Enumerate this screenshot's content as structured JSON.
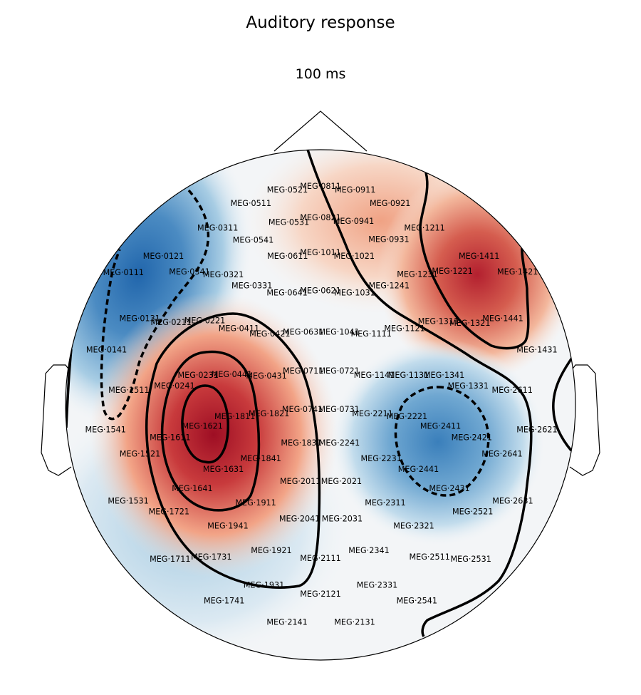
{
  "chart_data": {
    "type": "heatmap",
    "title": "Auditory response",
    "subtitle": "100 ms",
    "colormap": "RdBu_r",
    "colors": {
      "positive": "#b2182b",
      "negative": "#2166ac",
      "neutral": "#f7f7f7"
    },
    "sensors": [
      {
        "name": "MEG·0521",
        "x": -0.13,
        "y": 0.843
      },
      {
        "name": "MEG·0811",
        "x": 0.0,
        "y": 0.857
      },
      {
        "name": "MEG·0911",
        "x": 0.136,
        "y": 0.843
      },
      {
        "name": "MEG·0511",
        "x": -0.273,
        "y": 0.791
      },
      {
        "name": "MEG·0921",
        "x": 0.273,
        "y": 0.791
      },
      {
        "name": "MEG·0531",
        "x": -0.124,
        "y": 0.717
      },
      {
        "name": "MEG·0821",
        "x": 0.0,
        "y": 0.734
      },
      {
        "name": "MEG·0941",
        "x": 0.13,
        "y": 0.72
      },
      {
        "name": "MEG·0311",
        "x": -0.403,
        "y": 0.694
      },
      {
        "name": "MEG·1211",
        "x": 0.408,
        "y": 0.694
      },
      {
        "name": "MEG·0541",
        "x": -0.264,
        "y": 0.646
      },
      {
        "name": "MEG·0931",
        "x": 0.268,
        "y": 0.649
      },
      {
        "name": "MEG·0121",
        "x": -0.616,
        "y": 0.584
      },
      {
        "name": "MEG·1411",
        "x": 0.622,
        "y": 0.584
      },
      {
        "name": "MEG·0611",
        "x": -0.129,
        "y": 0.584
      },
      {
        "name": "MEG·1011",
        "x": 0.0,
        "y": 0.598
      },
      {
        "name": "MEG·1021",
        "x": 0.132,
        "y": 0.584
      },
      {
        "name": "MEG·0111",
        "x": -0.773,
        "y": 0.52
      },
      {
        "name": "MEG·0341",
        "x": -0.514,
        "y": 0.523
      },
      {
        "name": "MEG·0321",
        "x": -0.381,
        "y": 0.511
      },
      {
        "name": "MEG·1221",
        "x": 0.517,
        "y": 0.525
      },
      {
        "name": "MEG·1231",
        "x": 0.38,
        "y": 0.513
      },
      {
        "name": "MEG·1421",
        "x": 0.773,
        "y": 0.523
      },
      {
        "name": "MEG·0331",
        "x": -0.269,
        "y": 0.468
      },
      {
        "name": "MEG·1241",
        "x": 0.269,
        "y": 0.468
      },
      {
        "name": "MEG·0641",
        "x": -0.131,
        "y": 0.44
      },
      {
        "name": "MEG·0621",
        "x": 0.0,
        "y": 0.448
      },
      {
        "name": "MEG·1031",
        "x": 0.134,
        "y": 0.44
      },
      {
        "name": "MEG·0131",
        "x": -0.709,
        "y": 0.34
      },
      {
        "name": "MEG·0211",
        "x": -0.586,
        "y": 0.324
      },
      {
        "name": "MEG·0221",
        "x": -0.454,
        "y": 0.331
      },
      {
        "name": "MEG·1311",
        "x": 0.462,
        "y": 0.328
      },
      {
        "name": "MEG·1321",
        "x": 0.586,
        "y": 0.321
      },
      {
        "name": "MEG·1441",
        "x": 0.715,
        "y": 0.34
      },
      {
        "name": "MEG·0411",
        "x": -0.32,
        "y": 0.3
      },
      {
        "name": "MEG·0421",
        "x": -0.199,
        "y": 0.28
      },
      {
        "name": "MEG·0631",
        "x": -0.068,
        "y": 0.286
      },
      {
        "name": "MEG·1041",
        "x": 0.073,
        "y": 0.286
      },
      {
        "name": "MEG·1111",
        "x": 0.199,
        "y": 0.28
      },
      {
        "name": "MEG·1121",
        "x": 0.33,
        "y": 0.3
      },
      {
        "name": "MEG·0141",
        "x": -0.839,
        "y": 0.216
      },
      {
        "name": "MEG·1431",
        "x": 0.849,
        "y": 0.216
      },
      {
        "name": "MEG·0711",
        "x": -0.068,
        "y": 0.134
      },
      {
        "name": "MEG·0721",
        "x": 0.073,
        "y": 0.134
      },
      {
        "name": "MEG·0231",
        "x": -0.48,
        "y": 0.117
      },
      {
        "name": "MEG·0441",
        "x": -0.348,
        "y": 0.12
      },
      {
        "name": "MEG·0431",
        "x": -0.212,
        "y": 0.115
      },
      {
        "name": "MEG·1141",
        "x": 0.211,
        "y": 0.117
      },
      {
        "name": "MEG·1131",
        "x": 0.345,
        "y": 0.117
      },
      {
        "name": "MEG·1341",
        "x": 0.485,
        "y": 0.117
      },
      {
        "name": "MEG·0241",
        "x": -0.573,
        "y": 0.076
      },
      {
        "name": "MEG·1511",
        "x": -0.752,
        "y": 0.059
      },
      {
        "name": "MEG·1331",
        "x": 0.579,
        "y": 0.076
      },
      {
        "name": "MEG·2611",
        "x": 0.752,
        "y": 0.059
      },
      {
        "name": "MEG·1811",
        "x": -0.336,
        "y": -0.045
      },
      {
        "name": "MEG·1821",
        "x": -0.202,
        "y": -0.034
      },
      {
        "name": "MEG·0741",
        "x": -0.071,
        "y": -0.017
      },
      {
        "name": "MEG·0731",
        "x": 0.073,
        "y": -0.017
      },
      {
        "name": "MEG·2211",
        "x": 0.204,
        "y": -0.034
      },
      {
        "name": "MEG·2221",
        "x": 0.339,
        "y": -0.045
      },
      {
        "name": "MEG·1621",
        "x": -0.463,
        "y": -0.082
      },
      {
        "name": "MEG·2411",
        "x": 0.471,
        "y": -0.082
      },
      {
        "name": "MEG·1541",
        "x": -0.843,
        "y": -0.096
      },
      {
        "name": "MEG·2621",
        "x": 0.849,
        "y": -0.096
      },
      {
        "name": "MEG·1611",
        "x": -0.59,
        "y": -0.127
      },
      {
        "name": "MEG·2421",
        "x": 0.593,
        "y": -0.127
      },
      {
        "name": "MEG·1831",
        "x": -0.075,
        "y": -0.148
      },
      {
        "name": "MEG·2241",
        "x": 0.074,
        "y": -0.148
      },
      {
        "name": "MEG·1521",
        "x": -0.708,
        "y": -0.192
      },
      {
        "name": "MEG·2641",
        "x": 0.712,
        "y": -0.192
      },
      {
        "name": "MEG·1841",
        "x": -0.234,
        "y": -0.209
      },
      {
        "name": "MEG·2231",
        "x": 0.238,
        "y": -0.209
      },
      {
        "name": "MEG·1631",
        "x": -0.381,
        "y": -0.251
      },
      {
        "name": "MEG·2441",
        "x": 0.384,
        "y": -0.251
      },
      {
        "name": "MEG·2011",
        "x": -0.079,
        "y": -0.299
      },
      {
        "name": "MEG·2021",
        "x": 0.082,
        "y": -0.299
      },
      {
        "name": "MEG·1641",
        "x": -0.503,
        "y": -0.327
      },
      {
        "name": "MEG·2431",
        "x": 0.506,
        "y": -0.327
      },
      {
        "name": "MEG·1531",
        "x": -0.754,
        "y": -0.375
      },
      {
        "name": "MEG·2631",
        "x": 0.754,
        "y": -0.375
      },
      {
        "name": "MEG·1911",
        "x": -0.254,
        "y": -0.383
      },
      {
        "name": "MEG·2311",
        "x": 0.254,
        "y": -0.383
      },
      {
        "name": "MEG·1721",
        "x": -0.594,
        "y": -0.417
      },
      {
        "name": "MEG·2521",
        "x": 0.597,
        "y": -0.417
      },
      {
        "name": "MEG·2041",
        "x": -0.082,
        "y": -0.445
      },
      {
        "name": "MEG·2031",
        "x": 0.085,
        "y": -0.445
      },
      {
        "name": "MEG·1941",
        "x": -0.363,
        "y": -0.473
      },
      {
        "name": "MEG·2321",
        "x": 0.366,
        "y": -0.473
      },
      {
        "name": "MEG·1921",
        "x": -0.193,
        "y": -0.57
      },
      {
        "name": "MEG·2341",
        "x": 0.19,
        "y": -0.57
      },
      {
        "name": "MEG·1711",
        "x": -0.59,
        "y": -0.604
      },
      {
        "name": "MEG·1731",
        "x": -0.428,
        "y": -0.595
      },
      {
        "name": "MEG·2511",
        "x": 0.428,
        "y": -0.595
      },
      {
        "name": "MEG·2531",
        "x": 0.59,
        "y": -0.604
      },
      {
        "name": "MEG·2111",
        "x": 0.0,
        "y": -0.6
      },
      {
        "name": "MEG·1931",
        "x": -0.222,
        "y": -0.705
      },
      {
        "name": "MEG·2331",
        "x": 0.222,
        "y": -0.705
      },
      {
        "name": "MEG·2121",
        "x": 0.0,
        "y": -0.74
      },
      {
        "name": "MEG·1741",
        "x": -0.378,
        "y": -0.767
      },
      {
        "name": "MEG·2541",
        "x": 0.378,
        "y": -0.767
      },
      {
        "name": "MEG·2141",
        "x": -0.131,
        "y": -0.851
      },
      {
        "name": "MEG·2131",
        "x": 0.134,
        "y": -0.851
      }
    ]
  }
}
